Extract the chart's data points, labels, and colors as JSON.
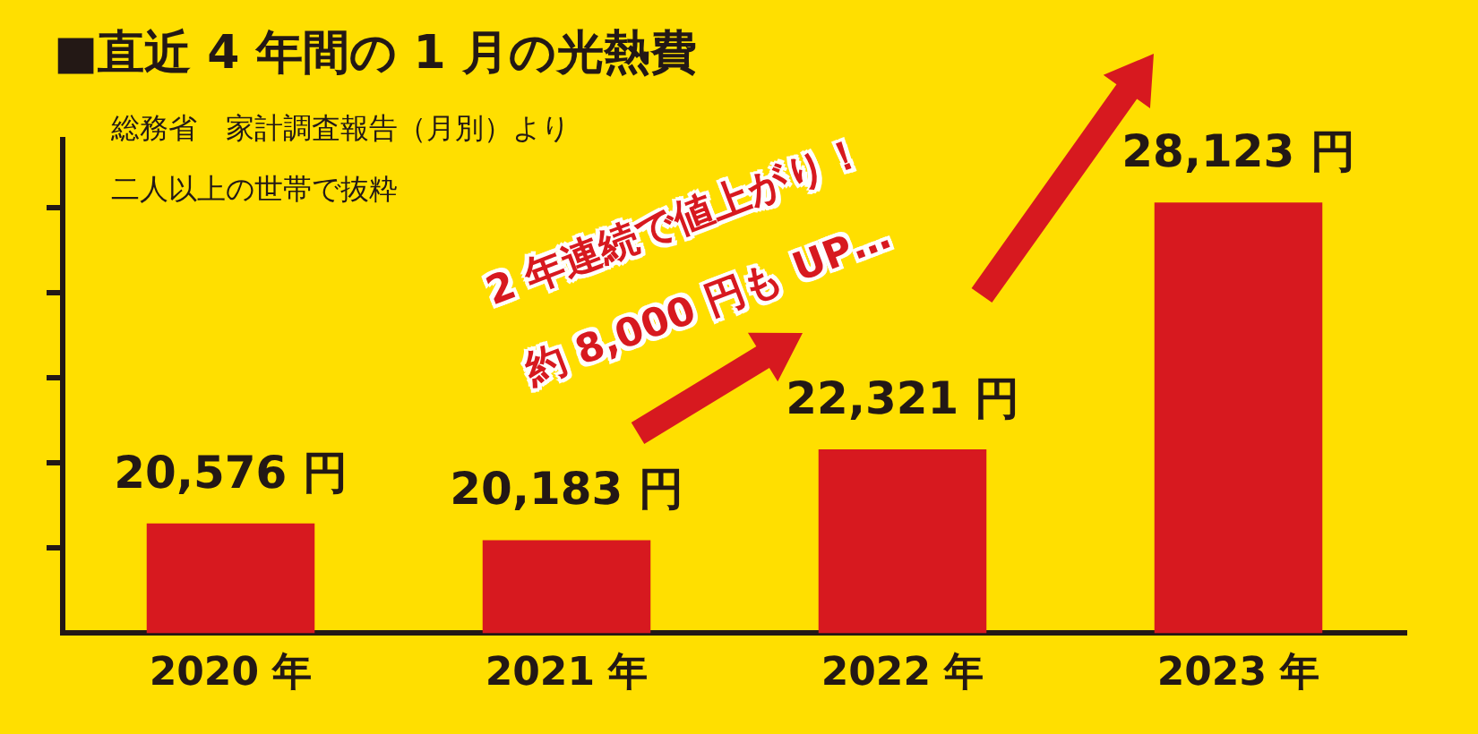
{
  "chart_data": {
    "type": "bar",
    "title": "■直近 4 年間の 1 月の光熱費",
    "subtitle": "総務省　家計調査報告（月別）より",
    "annotations": [
      "二人以上の世帯で抜粋",
      "2 年連続で値上がり！",
      "約 8,000 円も UP…"
    ],
    "categories": [
      "2020 年",
      "2021 年",
      "2022 年",
      "2023 年"
    ],
    "values": [
      20576,
      20183,
      22321,
      28123
    ],
    "value_labels": [
      "20,576 円",
      "20,183 円",
      "22,321 円",
      "28,123 円"
    ],
    "color": "#d7191f",
    "ylim": [
      18000,
      29600
    ],
    "yticks": [
      {
        "value": 20000,
        "label": null
      },
      {
        "value": 22000,
        "label": null
      },
      {
        "value": 24000,
        "label": null
      },
      {
        "value": 26000,
        "label": null
      },
      {
        "value": 28000,
        "label": null
      }
    ],
    "tick_labels": "x",
    "grid": false,
    "legend": false
  }
}
